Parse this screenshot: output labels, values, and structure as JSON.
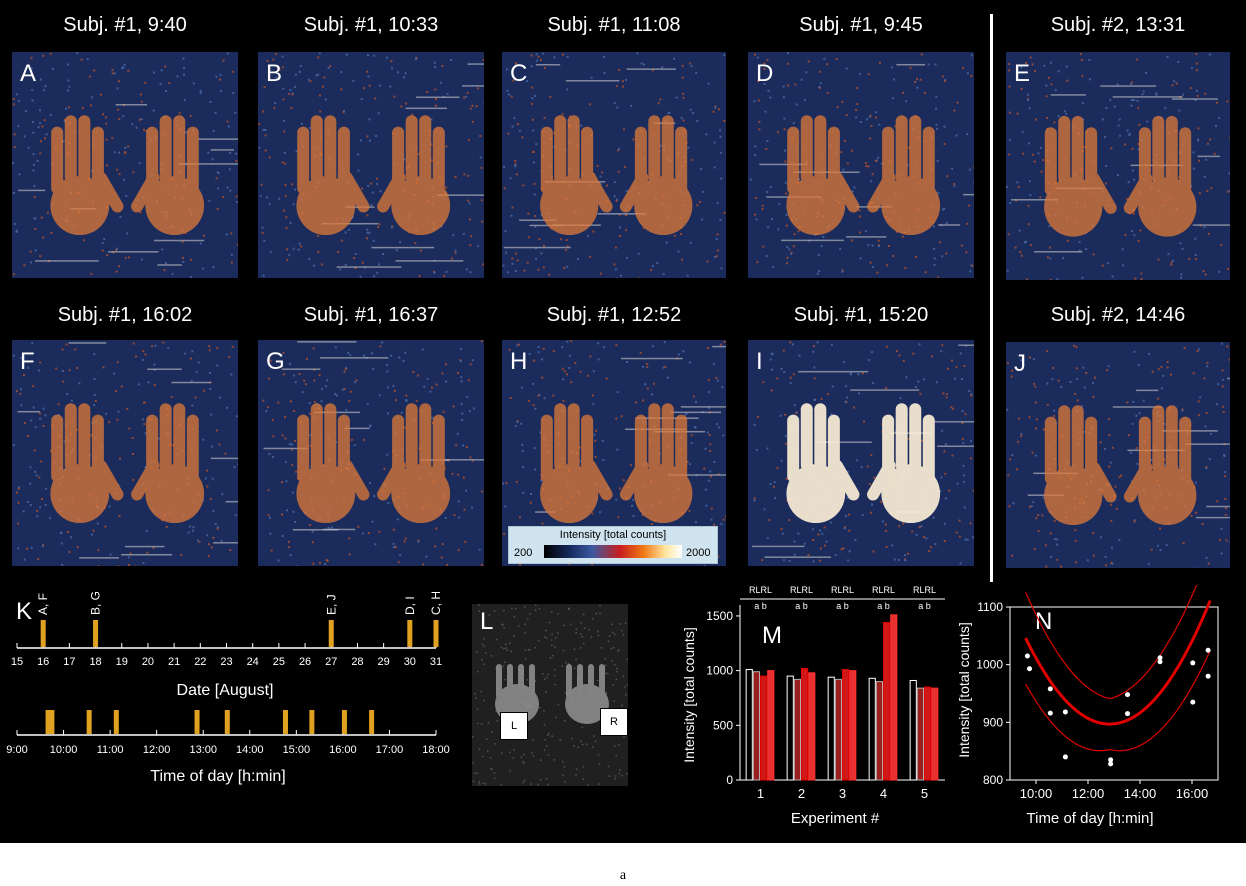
{
  "panels": [
    {
      "letter": "A",
      "title": "Subj. #1, 9:40"
    },
    {
      "letter": "B",
      "title": "Subj. #1, 10:33"
    },
    {
      "letter": "C",
      "title": "Subj. #1, 11:08"
    },
    {
      "letter": "D",
      "title": "Subj. #1, 9:45"
    },
    {
      "letter": "E",
      "title": "Subj. #2, 13:31"
    },
    {
      "letter": "F",
      "title": "Subj. #1, 16:02"
    },
    {
      "letter": "G",
      "title": "Subj. #1, 16:37"
    },
    {
      "letter": "H",
      "title": "Subj. #1, 12:52"
    },
    {
      "letter": "I",
      "title": "Subj. #1, 15:20"
    },
    {
      "letter": "J",
      "title": "Subj. #2, 14:46"
    }
  ],
  "colorbar": {
    "title": "Intensity [total counts]",
    "min_label": "200",
    "max_label": "2000",
    "colors": [
      "#000000",
      "#14285a",
      "#3c5aa0",
      "#c81e1e",
      "#f07814",
      "#ffe6a0",
      "#ffffff"
    ]
  },
  "panel_K": {
    "letter": "K",
    "date_axis_label": "Date [August]",
    "time_axis_label": "Time of day [h:min]",
    "date_ticks": [
      "15",
      "16",
      "17",
      "18",
      "19",
      "20",
      "21",
      "22",
      "23",
      "24",
      "25",
      "26",
      "27",
      "28",
      "29",
      "30",
      "31"
    ],
    "date_events": [
      {
        "day": 16,
        "label": "A, F"
      },
      {
        "day": 18,
        "label": "B, G"
      },
      {
        "day": 27,
        "label": "E, J"
      },
      {
        "day": 30,
        "label": "D, I"
      },
      {
        "day": 31,
        "label": "C, H"
      }
    ],
    "time_ticks": [
      "9:00",
      "10:00",
      "11:00",
      "12:00",
      "13:00",
      "14:00",
      "15:00",
      "16:00",
      "17:00",
      "18:00"
    ],
    "time_events_hours": [
      9.667,
      9.75,
      10.55,
      11.133,
      12.867,
      13.517,
      14.767,
      15.333,
      16.033,
      16.617
    ],
    "bar_color": "#e0a020"
  },
  "panel_L": {
    "letter": "L",
    "left_label": "L",
    "right_label": "R"
  },
  "panel_M": {
    "letter": "M",
    "xlabel": "Experiment #",
    "ylabel": "Intensity [total counts]",
    "chart_data": {
      "type": "bar",
      "title": "",
      "xlabel": "Experiment #",
      "ylabel": "Intensity [total counts]",
      "ylim": [
        0,
        1600
      ],
      "categories": [
        "1",
        "2",
        "3",
        "4",
        "5"
      ],
      "group_top": "RLRL",
      "group_sub": "a  b",
      "yticks": [
        "0",
        "500",
        "1000",
        "1500"
      ],
      "series": [
        {
          "name": "R a",
          "values": [
            1010,
            950,
            940,
            930,
            910
          ]
        },
        {
          "name": "L a",
          "values": [
            990,
            920,
            920,
            900,
            840
          ]
        },
        {
          "name": "R b",
          "values": [
            950,
            1020,
            1010,
            1440,
            850
          ]
        },
        {
          "name": "L b",
          "values": [
            1000,
            980,
            1000,
            1510,
            840
          ]
        }
      ]
    }
  },
  "panel_N": {
    "letter": "N",
    "xlabel": "Time of day [h:min]",
    "ylabel": "Intensity [total counts]",
    "chart_data": {
      "type": "scatter",
      "xlabel": "Time of day [h:min]",
      "ylabel": "Intensity [total counts]",
      "xlim": [
        9.0,
        17.0
      ],
      "ylim": [
        800,
        1100
      ],
      "xticks": [
        "10:00",
        "12:00",
        "14:00",
        "16:00"
      ],
      "yticks": [
        "800",
        "900",
        "1000",
        "1100"
      ],
      "points": [
        [
          9.67,
          1015
        ],
        [
          9.75,
          993
        ],
        [
          10.55,
          958
        ],
        [
          10.55,
          916
        ],
        [
          11.13,
          918
        ],
        [
          11.13,
          840
        ],
        [
          12.87,
          835
        ],
        [
          12.87,
          828
        ],
        [
          13.52,
          948
        ],
        [
          13.52,
          915
        ],
        [
          14.77,
          1012
        ],
        [
          14.77,
          1005
        ],
        [
          16.03,
          1003
        ],
        [
          16.03,
          935
        ],
        [
          16.62,
          1025
        ],
        [
          16.62,
          980
        ]
      ],
      "fit": {
        "a": 14.3,
        "x0": 12.83,
        "c": 897
      },
      "ci_offset": 44
    }
  },
  "caption": "a"
}
